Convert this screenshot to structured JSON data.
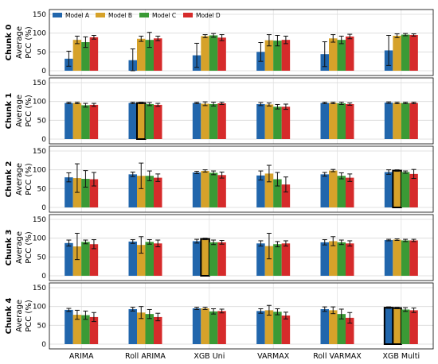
{
  "colors": {
    "model_a": "#2166ac",
    "model_b": "#d6a22a",
    "model_c": "#3a9a35",
    "model_d": "#d62b2b",
    "grid": "#d8d8d8",
    "highlight": "#000000"
  },
  "chart_data": {
    "type": "bar",
    "categories": [
      "ARIMA",
      "Roll ARIMA",
      "XGB Uni",
      "VARMAX",
      "Roll VARMAX",
      "XGB Multi"
    ],
    "legend": [
      "Model A",
      "Model B",
      "Model C",
      "Model D"
    ],
    "legend_position": "top-left",
    "grid": true,
    "ylim": [
      0,
      150
    ],
    "yticks": [
      "0",
      "50",
      "100",
      "150"
    ],
    "panels": [
      {
        "row_title": "Chunk 0",
        "ylabel_line1": "Average",
        "ylabel_line2": "PCC (%)",
        "values": [
          [
            32,
            82,
            76,
            89
          ],
          [
            28,
            85,
            82,
            86
          ],
          [
            41,
            92,
            94,
            88
          ],
          [
            50,
            81,
            80,
            82
          ],
          [
            44,
            86,
            82,
            91
          ],
          [
            54,
            93,
            96,
            95
          ]
        ],
        "errors": [
          [
            20,
            10,
            14,
            5
          ],
          [
            30,
            7,
            20,
            6
          ],
          [
            32,
            4,
            5,
            8
          ],
          [
            25,
            15,
            14,
            10
          ],
          [
            33,
            10,
            10,
            6
          ],
          [
            40,
            5,
            3,
            3
          ]
        ],
        "highlight": [
          [],
          [],
          [],
          [],
          [],
          []
        ]
      },
      {
        "row_title": "Chunk 1",
        "ylabel_line1": "Average",
        "ylabel_line2": "PCC (%)",
        "values": [
          [
            96,
            96,
            90,
            91
          ],
          [
            96,
            96,
            93,
            91
          ],
          [
            96,
            94,
            93,
            95
          ],
          [
            93,
            92,
            86,
            86
          ],
          [
            96,
            96,
            95,
            93
          ],
          [
            97,
            96,
            96,
            96
          ]
        ],
        "errors": [
          [
            2,
            2,
            5,
            4
          ],
          [
            2,
            2,
            4,
            4
          ],
          [
            2,
            5,
            5,
            3
          ],
          [
            4,
            4,
            6,
            7
          ],
          [
            2,
            2,
            3,
            3
          ],
          [
            2,
            2,
            2,
            2
          ]
        ],
        "highlight": [
          [],
          [
            1
          ],
          [],
          [],
          [],
          []
        ]
      },
      {
        "row_title": "Chunk 2",
        "ylabel_line1": "Average",
        "ylabel_line2": "PCC (%)",
        "values": [
          [
            80,
            78,
            76,
            75
          ],
          [
            88,
            84,
            84,
            79
          ],
          [
            93,
            97,
            92,
            86
          ],
          [
            85,
            90,
            75,
            61
          ],
          [
            88,
            98,
            84,
            79
          ],
          [
            94,
            98,
            94,
            89
          ]
        ],
        "errors": [
          [
            12,
            38,
            22,
            18
          ],
          [
            6,
            34,
            13,
            10
          ],
          [
            3,
            3,
            5,
            8
          ],
          [
            12,
            22,
            18,
            20
          ],
          [
            5,
            3,
            8,
            10
          ],
          [
            6,
            2,
            3,
            12
          ]
        ],
        "highlight": [
          [],
          [],
          [],
          [],
          [],
          [
            1
          ]
        ]
      },
      {
        "row_title": "Chunk 3",
        "ylabel_line1": "Average",
        "ylabel_line2": "PCC (%)",
        "values": [
          [
            87,
            78,
            90,
            84
          ],
          [
            91,
            82,
            90,
            86
          ],
          [
            92,
            98,
            89,
            89
          ],
          [
            86,
            79,
            84,
            86
          ],
          [
            89,
            92,
            89,
            86
          ],
          [
            95,
            96,
            94,
            94
          ]
        ],
        "errors": [
          [
            8,
            35,
            5,
            12
          ],
          [
            5,
            22,
            6,
            9
          ],
          [
            5,
            2,
            6,
            5
          ],
          [
            7,
            34,
            7,
            7
          ],
          [
            7,
            12,
            6,
            7
          ],
          [
            2,
            2,
            3,
            3
          ]
        ],
        "highlight": [
          [],
          [],
          [
            1
          ],
          [],
          [],
          []
        ]
      },
      {
        "row_title": "Chunk 4",
        "ylabel_line1": "Average",
        "ylabel_line2": "PCC (%)",
        "values": [
          [
            91,
            78,
            77,
            72
          ],
          [
            93,
            84,
            80,
            72
          ],
          [
            95,
            95,
            87,
            88
          ],
          [
            88,
            90,
            86,
            76
          ],
          [
            93,
            90,
            80,
            70
          ],
          [
            97,
            96,
            92,
            90
          ]
        ],
        "errors": [
          [
            4,
            12,
            11,
            12
          ],
          [
            5,
            16,
            12,
            10
          ],
          [
            3,
            3,
            7,
            5
          ],
          [
            6,
            13,
            8,
            9
          ],
          [
            6,
            9,
            13,
            14
          ],
          [
            2,
            2,
            5,
            6
          ]
        ],
        "highlight": [
          [],
          [],
          [],
          [],
          [],
          [
            0,
            1
          ]
        ]
      }
    ]
  }
}
